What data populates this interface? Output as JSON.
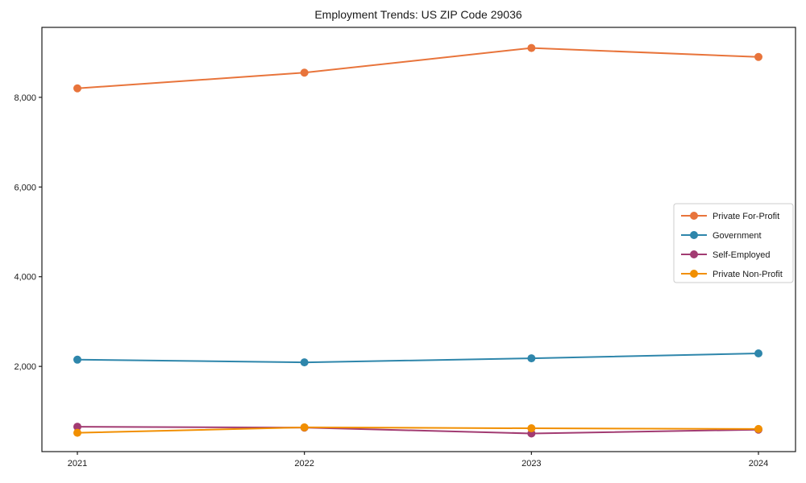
{
  "chart_data": {
    "type": "line",
    "title": "Employment Trends: US ZIP Code 29036",
    "categories": [
      "2021",
      "2022",
      "2023",
      "2024"
    ],
    "series": [
      {
        "name": "Private For-Profit",
        "color": "#E8743B",
        "values": [
          8200,
          8550,
          9100,
          8900
        ]
      },
      {
        "name": "Government",
        "color": "#2E86AB",
        "values": [
          2150,
          2090,
          2180,
          2290
        ]
      },
      {
        "name": "Self-Employed",
        "color": "#A23B72",
        "values": [
          655,
          635,
          505,
          590
        ]
      },
      {
        "name": "Private Non-Profit",
        "color": "#F18F01",
        "values": [
          520,
          640,
          620,
          605
        ]
      }
    ],
    "xlabel": "",
    "ylabel": "",
    "ylim": [
      100,
      9560
    ],
    "yticks": [
      2000,
      4000,
      6000,
      8000
    ],
    "ytick_labels": [
      "2,000",
      "4,000",
      "6,000",
      "8,000"
    ],
    "grid": false,
    "legend_position": "center-right",
    "marker": "circle",
    "frame_color": "#1a1a1a",
    "background_color": "#ffffff"
  }
}
